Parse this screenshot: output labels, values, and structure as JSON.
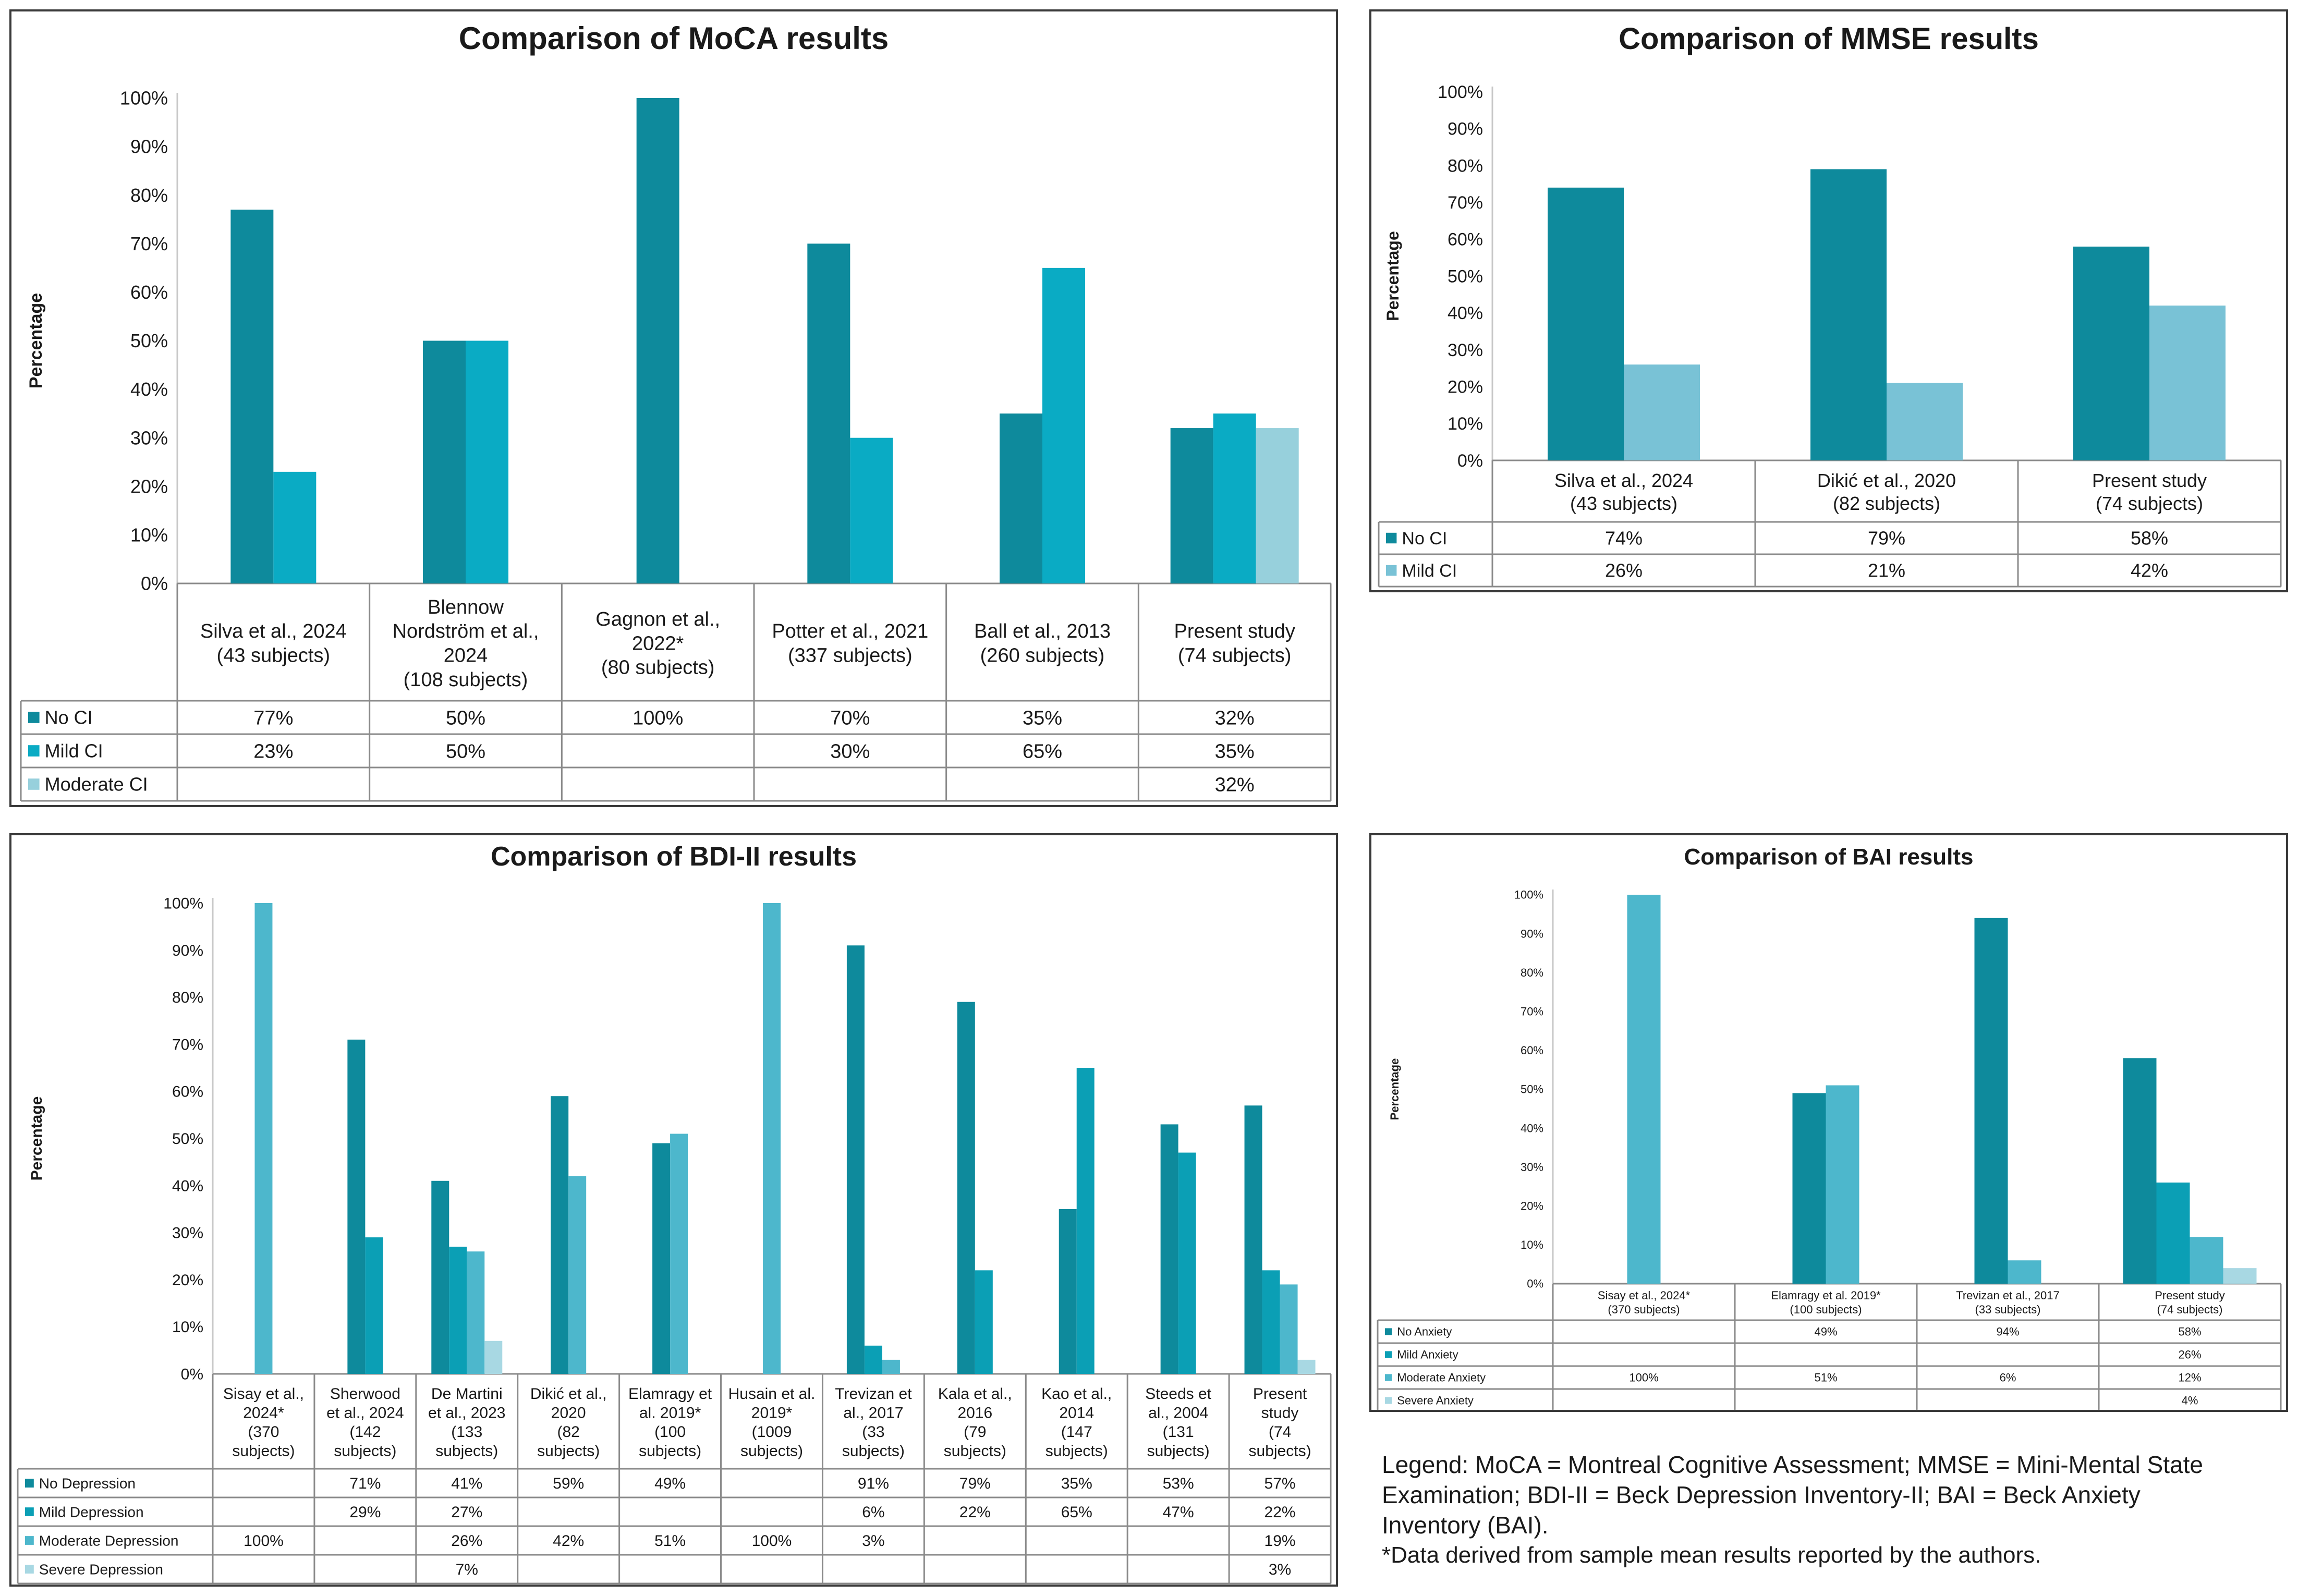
{
  "colors": {
    "dark": "#0E8A9C",
    "mid": "#0AABC4",
    "light": "#97D0DC",
    "mmse_light": "#79C2D6",
    "bdi_dark": "#0E8A9C",
    "bdi_mid": "#0B9FB5",
    "bdi_light": "#4DB7CC",
    "bdi_faint": "#A8D8E3",
    "bai_dark": "#0E8A9C",
    "bai_mid": "#0B9FB5",
    "bai_light": "#4DB7CC",
    "bai_faint": "#A8D8E3",
    "grid": "#c8c8c8",
    "border": "#3a3a3a"
  },
  "chart_data": [
    {
      "id": "moca",
      "type": "bar",
      "title": "Comparison of MoCA results",
      "ylabel": "Percentage",
      "ylim": [
        0,
        100
      ],
      "yticks": [
        "0%",
        "10%",
        "20%",
        "30%",
        "40%",
        "50%",
        "60%",
        "70%",
        "80%",
        "90%",
        "100%"
      ],
      "categories": [
        [
          "Silva et al., 2024",
          "(43 subjects)"
        ],
        [
          "Blennow",
          "Nordström et al.,",
          "2024",
          "(108 subjects)"
        ],
        [
          "Gagnon et al.,",
          "2022*",
          "(80 subjects)"
        ],
        [
          "Potter et al., 2021",
          "(337 subjects)"
        ],
        [
          "Ball et al., 2013",
          "(260 subjects)"
        ],
        [
          "Present study",
          "(74 subjects)"
        ]
      ],
      "series": [
        {
          "name": "No CI",
          "color": "#0E8A9C",
          "values": [
            77,
            50,
            100,
            70,
            35,
            32
          ],
          "labels": [
            "77%",
            "50%",
            "100%",
            "70%",
            "35%",
            "32%"
          ]
        },
        {
          "name": "Mild CI",
          "color": "#0AABC4",
          "values": [
            23,
            50,
            null,
            30,
            65,
            35
          ],
          "labels": [
            "23%",
            "50%",
            "",
            "30%",
            "65%",
            "35%"
          ]
        },
        {
          "name": "Moderate CI",
          "color": "#97D0DC",
          "values": [
            null,
            null,
            null,
            null,
            null,
            32
          ],
          "labels": [
            "",
            "",
            "",
            "",
            "",
            "32%"
          ]
        }
      ]
    },
    {
      "id": "mmse",
      "type": "bar",
      "title": "Comparison of MMSE results",
      "ylabel": "Percentage",
      "ylim": [
        0,
        100
      ],
      "yticks": [
        "0%",
        "10%",
        "20%",
        "30%",
        "40%",
        "50%",
        "60%",
        "70%",
        "80%",
        "90%",
        "100%"
      ],
      "categories": [
        [
          "Silva et al., 2024",
          "(43 subjects)"
        ],
        [
          "Dikić et al., 2020",
          "(82 subjects)"
        ],
        [
          "Present study",
          "(74 subjects)"
        ]
      ],
      "series": [
        {
          "name": "No CI",
          "color": "#0E8A9C",
          "values": [
            74,
            79,
            58
          ],
          "labels": [
            "74%",
            "79%",
            "58%"
          ]
        },
        {
          "name": "Mild CI",
          "color": "#79C2D6",
          "values": [
            26,
            21,
            42
          ],
          "labels": [
            "26%",
            "21%",
            "42%"
          ]
        }
      ]
    },
    {
      "id": "bdi",
      "type": "bar",
      "title": "Comparison of BDI-II results",
      "ylabel": "Percentage",
      "ylim": [
        0,
        100
      ],
      "yticks": [
        "0%",
        "10%",
        "20%",
        "30%",
        "40%",
        "50%",
        "60%",
        "70%",
        "80%",
        "90%",
        "100%"
      ],
      "categories": [
        [
          "Sisay et al.,",
          "2024*",
          "(370",
          "subjects)"
        ],
        [
          "Sherwood",
          "et al., 2024",
          "(142",
          "subjects)"
        ],
        [
          "De Martini",
          "et al., 2023",
          "(133",
          "subjects)"
        ],
        [
          "Dikić et al.,",
          "2020",
          "(82",
          "subjects)"
        ],
        [
          "Elamragy et",
          "al. 2019*",
          "(100",
          "subjects)"
        ],
        [
          "Husain et al.",
          "2019*",
          "(1009",
          "subjects)"
        ],
        [
          "Trevizan et",
          "al., 2017",
          "(33",
          "subjects)"
        ],
        [
          "Kala et al.,",
          "2016",
          "(79",
          "subjects)"
        ],
        [
          "Kao et al.,",
          "2014",
          "(147",
          "subjects)"
        ],
        [
          "Steeds et",
          "al., 2004",
          "(131",
          "subjects)"
        ],
        [
          "Present",
          "study",
          "(74",
          "subjects)"
        ]
      ],
      "series": [
        {
          "name": "No Depression",
          "color": "#0E8A9C",
          "values": [
            null,
            71,
            41,
            59,
            49,
            null,
            91,
            79,
            35,
            53,
            57
          ],
          "labels": [
            "",
            "71%",
            "41%",
            "59%",
            "49%",
            "",
            "91%",
            "79%",
            "35%",
            "53%",
            "57%"
          ]
        },
        {
          "name": "Mild Depression",
          "color": "#0B9FB5",
          "values": [
            null,
            29,
            27,
            null,
            null,
            null,
            6,
            22,
            65,
            47,
            22
          ],
          "labels": [
            "",
            "29%",
            "27%",
            "",
            "",
            "",
            "6%",
            "22%",
            "65%",
            "47%",
            "22%"
          ]
        },
        {
          "name": "Moderate Depression",
          "color": "#4DB7CC",
          "values": [
            100,
            null,
            26,
            42,
            51,
            100,
            3,
            null,
            null,
            null,
            19
          ],
          "labels": [
            "100%",
            "",
            "26%",
            "42%",
            "51%",
            "100%",
            "3%",
            "",
            "",
            "",
            "19%"
          ]
        },
        {
          "name": "Severe Depression",
          "color": "#A8D8E3",
          "values": [
            null,
            null,
            7,
            null,
            null,
            null,
            null,
            null,
            null,
            null,
            3
          ],
          "labels": [
            "",
            "",
            "7%",
            "",
            "",
            "",
            "",
            "",
            "",
            "",
            "3%"
          ]
        }
      ]
    },
    {
      "id": "bai",
      "type": "bar",
      "title": "Comparison of BAI results",
      "ylabel": "Percentage",
      "ylim": [
        0,
        100
      ],
      "yticks": [
        "0%",
        "10%",
        "20%",
        "30%",
        "40%",
        "50%",
        "60%",
        "70%",
        "80%",
        "90%",
        "100%"
      ],
      "categories": [
        [
          "Sisay et al., 2024*",
          "(370 subjects)"
        ],
        [
          "Elamragy et al. 2019*",
          "(100 subjects)"
        ],
        [
          "Trevizan et al., 2017",
          "(33 subjects)"
        ],
        [
          "Present study",
          "(74 subjects)"
        ]
      ],
      "series": [
        {
          "name": "No Anxiety",
          "color": "#0E8A9C",
          "values": [
            null,
            49,
            94,
            58
          ],
          "labels": [
            "",
            "49%",
            "94%",
            "58%"
          ]
        },
        {
          "name": "Mild Anxiety",
          "color": "#0B9FB5",
          "values": [
            null,
            null,
            null,
            26
          ],
          "labels": [
            "",
            "",
            "",
            "26%"
          ]
        },
        {
          "name": "Moderate Anxiety",
          "color": "#4DB7CC",
          "values": [
            100,
            51,
            6,
            12
          ],
          "labels": [
            "100%",
            "51%",
            "6%",
            "12%"
          ]
        },
        {
          "name": "Severe Anxiety",
          "color": "#A8D8E3",
          "values": [
            null,
            null,
            null,
            4
          ],
          "labels": [
            "",
            "",
            "",
            "4%"
          ]
        }
      ]
    }
  ],
  "legend_note": {
    "line1": "Legend: MoCA = Montreal Cognitive Assessment;  MMSE = Mini-Mental State",
    "line2": "Examination;  BDI-II = Beck Depression Inventory-II; BAI = Beck Anxiety",
    "line3": "Inventory (BAI).",
    "line4": "*Data derived from sample mean results reported by the authors."
  }
}
